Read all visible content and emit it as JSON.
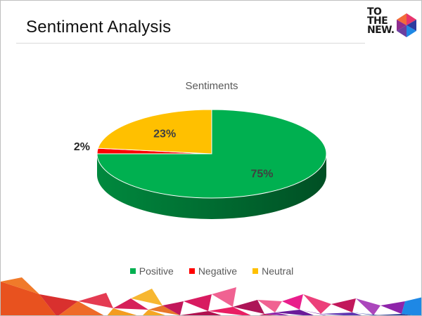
{
  "slide": {
    "title": "Sentiment Analysis"
  },
  "logo": {
    "lines": [
      "TO",
      "THE",
      "NEW."
    ]
  },
  "chart_data": {
    "type": "pie",
    "title": "Sentiments",
    "three_d": true,
    "legend_position": "bottom",
    "slices": [
      {
        "name": "Positive",
        "value": 75,
        "label": "75%",
        "color": "#00b050"
      },
      {
        "name": "Negative",
        "value": 2,
        "label": "2%",
        "color": "#ff0000"
      },
      {
        "name": "Neutral",
        "value": 23,
        "label": "23%",
        "color": "#ffc000"
      }
    ]
  }
}
